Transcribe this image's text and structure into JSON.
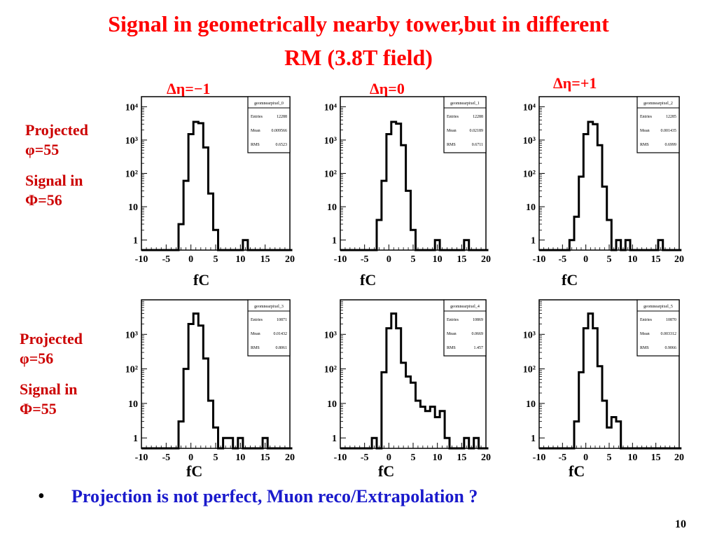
{
  "slide": {
    "title_line1": "Signal in geometrically nearby tower,but in different",
    "title_line2": "RM (3.8T field)",
    "eta_labels": [
      "Δη=−1",
      "Δη=0",
      "Δη=+1"
    ],
    "row1_label": [
      "Projected",
      "φ=55",
      "Signal in",
      "Φ=56"
    ],
    "row2_label": [
      "Projected",
      "φ=56",
      "Signal in",
      "Φ=55"
    ],
    "unit_label": "fC",
    "bullet": "Projection is not perfect, Muon reco/Extrapolation ?",
    "page_number": "10"
  },
  "chart_data": [
    {
      "type": "bar",
      "panel": "row1-col1",
      "x": [
        -5,
        -4,
        -3,
        -2,
        -1,
        0,
        1,
        2,
        3,
        4,
        5,
        6,
        7,
        8,
        9,
        10,
        11,
        12,
        13,
        14,
        15,
        16,
        17,
        18,
        19,
        20
      ],
      "values": [
        0,
        0,
        0,
        3,
        60,
        1500,
        3500,
        3200,
        600,
        25,
        2,
        0,
        0,
        0,
        0,
        0,
        1,
        0,
        0,
        0,
        0,
        0,
        0,
        0,
        0,
        0
      ],
      "ylog": true,
      "ylim": [
        0.5,
        20000
      ],
      "xlim": [
        -10,
        20
      ],
      "xticks": [
        "-10",
        "-5",
        "0",
        "5",
        "10",
        "15",
        "20"
      ],
      "yticks": [
        "1",
        "10",
        "10²",
        "10³",
        "10⁴"
      ],
      "stats": {
        "name": "geomnearpixel_0",
        "entries_label": "Entries",
        "entries": "12288",
        "mean_label": "Mean",
        "mean": "0.009566",
        "rms_label": "RMS",
        "rms": "0.6523"
      }
    },
    {
      "type": "bar",
      "panel": "row1-col2",
      "x": [
        -5,
        -4,
        -3,
        -2,
        -1,
        0,
        1,
        2,
        3,
        4,
        5,
        6,
        7,
        8,
        9,
        10,
        11,
        12,
        13,
        14,
        15,
        16,
        17,
        18,
        19,
        20
      ],
      "values": [
        0,
        0,
        0,
        4,
        60,
        1500,
        3500,
        3100,
        700,
        30,
        2,
        0,
        0,
        0,
        0,
        1,
        0,
        0,
        0,
        0,
        0,
        1,
        0,
        0,
        0,
        0
      ],
      "ylog": true,
      "ylim": [
        0.5,
        20000
      ],
      "xlim": [
        -10,
        20
      ],
      "xticks": [
        "-10",
        "-5",
        "0",
        "5",
        "10",
        "15",
        "20"
      ],
      "yticks": [
        "1",
        "10",
        "10²",
        "10³",
        "10⁴"
      ],
      "stats": {
        "name": "geomnearpixel_1",
        "entries_label": "Entries",
        "entries": "12288",
        "mean_label": "Mean",
        "mean": "0.02189",
        "rms_label": "RMS",
        "rms": "0.6711"
      }
    },
    {
      "type": "bar",
      "panel": "row1-col3",
      "x": [
        -5,
        -4,
        -3,
        -2,
        -1,
        0,
        1,
        2,
        3,
        4,
        5,
        6,
        7,
        8,
        9,
        10,
        11,
        12,
        13,
        14,
        15,
        16,
        17,
        18,
        19,
        20
      ],
      "values": [
        0,
        0,
        1,
        5,
        80,
        1500,
        3500,
        3000,
        700,
        40,
        4,
        0,
        1,
        0,
        1,
        0,
        0,
        0,
        0,
        0,
        0,
        1,
        0,
        0,
        0,
        0
      ],
      "ylog": true,
      "ylim": [
        0.5,
        20000
      ],
      "xlim": [
        -10,
        20
      ],
      "xticks": [
        "-10",
        "-5",
        "0",
        "5",
        "10",
        "15",
        "20"
      ],
      "yticks": [
        "1",
        "10",
        "10²",
        "10³",
        "10⁴"
      ],
      "stats": {
        "name": "geomnearpixel_2",
        "entries_label": "Entries",
        "entries": "12285",
        "mean_label": "Mean",
        "mean": "0.001435",
        "rms_label": "RMS",
        "rms": "0.6999"
      }
    },
    {
      "type": "bar",
      "panel": "row2-col1",
      "x": [
        -5,
        -4,
        -3,
        -2,
        -1,
        0,
        1,
        2,
        3,
        4,
        5,
        6,
        7,
        8,
        9,
        10,
        11,
        12,
        13,
        14,
        15,
        16,
        17,
        18,
        19,
        20
      ],
      "values": [
        0,
        0,
        0,
        3,
        100,
        2000,
        4000,
        1800,
        200,
        12,
        2,
        0,
        1,
        1,
        0,
        1,
        0,
        0,
        0,
        0,
        1,
        0,
        0,
        0,
        0,
        0
      ],
      "ylog": true,
      "ylim": [
        0.5,
        10000
      ],
      "xlim": [
        -10,
        20
      ],
      "xticks": [
        "-10",
        "-5",
        "0",
        "5",
        "10",
        "15",
        "20"
      ],
      "yticks": [
        "1",
        "10",
        "10²",
        "10³"
      ],
      "stats": {
        "name": "geomnearpixel_3",
        "entries_label": "Entries",
        "entries": "10871",
        "mean_label": "Mean",
        "mean": "0.01432",
        "rms_label": "RMS",
        "rms": "0.8061"
      }
    },
    {
      "type": "bar",
      "panel": "row2-col2",
      "x": [
        -5,
        -4,
        -3,
        -2,
        -1,
        0,
        1,
        2,
        3,
        4,
        5,
        6,
        7,
        8,
        9,
        10,
        11,
        12,
        13,
        14,
        15,
        16,
        17,
        18,
        19,
        20
      ],
      "values": [
        0,
        0,
        1,
        0,
        80,
        1500,
        4000,
        1500,
        150,
        60,
        40,
        12,
        8,
        6,
        8,
        4,
        6,
        1,
        0,
        0,
        0,
        1,
        0,
        1,
        0,
        0
      ],
      "ylog": true,
      "ylim": [
        0.5,
        10000
      ],
      "xlim": [
        -10,
        20
      ],
      "xticks": [
        "-10",
        "-5",
        "0",
        "5",
        "10",
        "15",
        "20"
      ],
      "yticks": [
        "1",
        "10",
        "10²",
        "10³"
      ],
      "stats": {
        "name": "geomnearpixel_4",
        "entries_label": "Entries",
        "entries": "10869",
        "mean_label": "Mean",
        "mean": "0.0669",
        "rms_label": "RMS",
        "rms": "1.457"
      }
    },
    {
      "type": "bar",
      "panel": "row2-col3",
      "x": [
        -5,
        -4,
        -3,
        -2,
        -1,
        0,
        1,
        2,
        3,
        4,
        5,
        6,
        7,
        8,
        9,
        10,
        11,
        12,
        13,
        14,
        15,
        16,
        17,
        18,
        19,
        20
      ],
      "values": [
        0,
        0,
        0,
        3,
        80,
        1500,
        4000,
        1500,
        120,
        12,
        2,
        4,
        3,
        0,
        0,
        0,
        0,
        0,
        0,
        0,
        0,
        0,
        0,
        0,
        0,
        0
      ],
      "ylog": true,
      "ylim": [
        0.5,
        10000
      ],
      "xlim": [
        -10,
        20
      ],
      "xticks": [
        "-10",
        "-5",
        "0",
        "5",
        "10",
        "15",
        "20"
      ],
      "yticks": [
        "1",
        "10",
        "10²",
        "10³"
      ],
      "stats": {
        "name": "geomnearpixel_5",
        "entries_label": "Entries",
        "entries": "10870",
        "mean_label": "Mean",
        "mean": "0.003312",
        "rms_label": "RMS",
        "rms": "0.9066"
      }
    }
  ]
}
